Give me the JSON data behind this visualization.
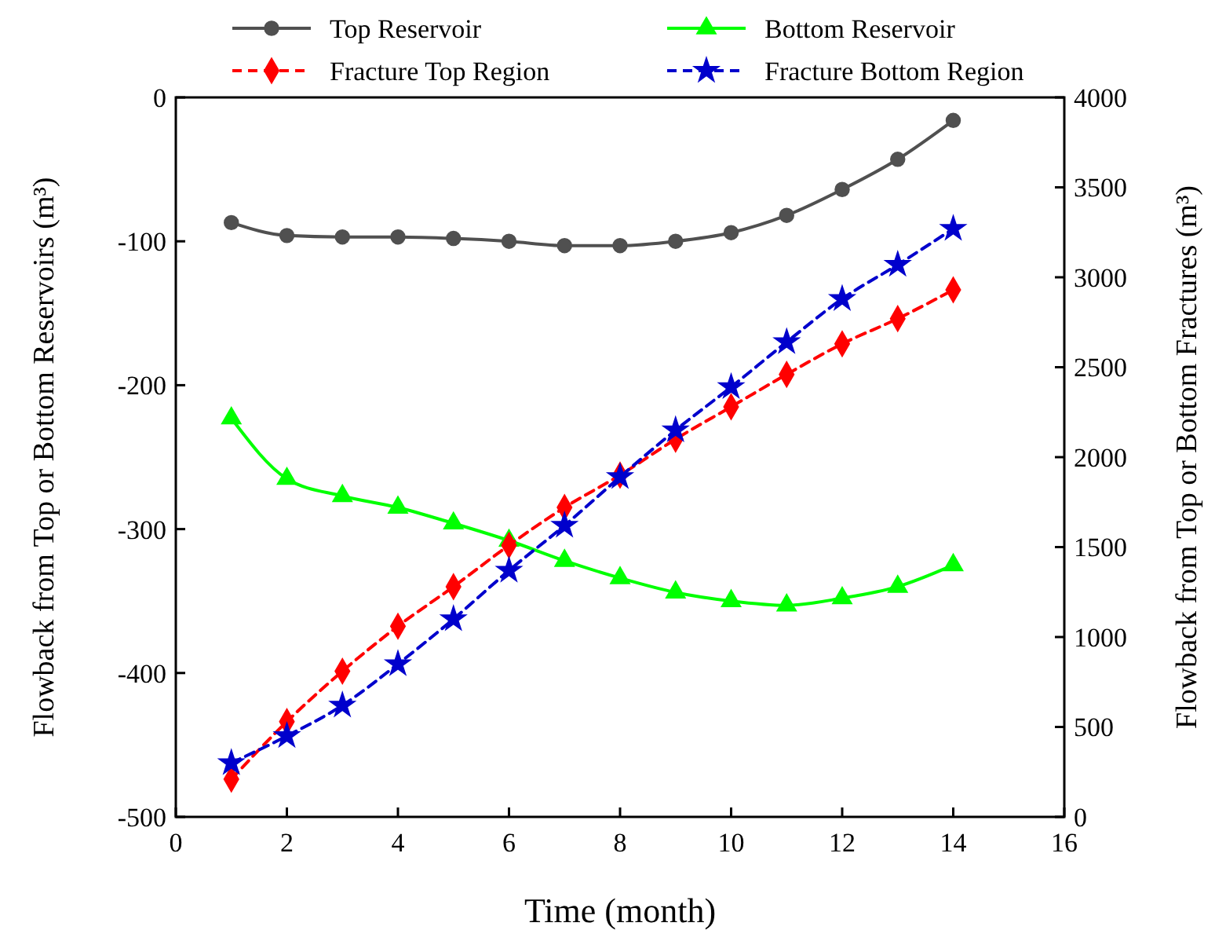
{
  "chart_data": {
    "type": "line",
    "xlabel": "Time (month)",
    "ylabel": "Flowback from Top or Bottom Reservoirs (m³)",
    "y2label": "Flowback from Top or Bottom Fractures (m³)",
    "x": [
      1,
      2,
      3,
      4,
      5,
      6,
      7,
      8,
      9,
      10,
      11,
      12,
      13,
      14
    ],
    "xlim": [
      0,
      16
    ],
    "xticks": [
      0,
      2,
      4,
      6,
      8,
      10,
      12,
      14,
      16
    ],
    "ylim": [
      -500,
      0
    ],
    "yticks": [
      -500,
      -400,
      -300,
      -200,
      -100,
      0
    ],
    "y2lim": [
      0,
      4000
    ],
    "y2ticks": [
      0,
      500,
      1000,
      1500,
      2000,
      2500,
      3000,
      3500,
      4000
    ],
    "legend": "top",
    "grid": false,
    "series": [
      {
        "name": "Top Reservoir",
        "color": "#505050",
        "marker": "circle",
        "line_style": "solid",
        "values": [
          -87,
          -96,
          -97,
          -97,
          -98,
          -100,
          -103,
          -103,
          -100,
          -94,
          -82,
          -64,
          -43,
          -16
        ]
      },
      {
        "name": "Bottom Reservoir",
        "color": "#00ff00",
        "marker": "triangle",
        "line_style": "solid",
        "values": [
          -223,
          -265,
          -277,
          -285,
          -296,
          -308,
          -322,
          -334,
          -344,
          -350,
          -353,
          -348,
          -340,
          -325
        ]
      },
      {
        "name": "Fracture Top Region",
        "color": "#ff0000",
        "marker": "diamond",
        "line_style": "dashed",
        "axis": "y2",
        "values": [
          210,
          530,
          810,
          1060,
          1280,
          1510,
          1720,
          1900,
          2100,
          2280,
          2460,
          2630,
          2770,
          2930
        ]
      },
      {
        "name": "Fracture Bottom Region",
        "color": "#0000cc",
        "marker": "star",
        "line_style": "dashed",
        "axis": "y2",
        "values": [
          300,
          450,
          620,
          850,
          1100,
          1370,
          1620,
          1890,
          2150,
          2390,
          2640,
          2880,
          3070,
          3270
        ]
      }
    ]
  }
}
